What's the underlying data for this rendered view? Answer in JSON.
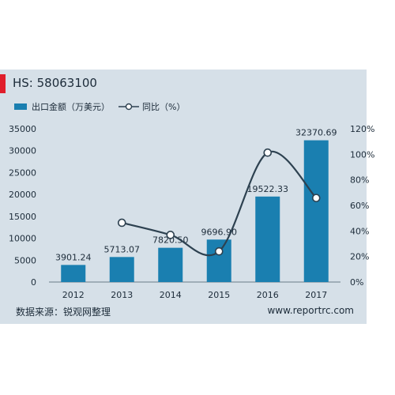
{
  "header": {
    "title": "HS: 58063100"
  },
  "footer": {
    "source": "数据来源：锐观网整理",
    "website": "www.reportrc.com"
  },
  "colors": {
    "bar": "#1a7fb0",
    "line": "#2d4150",
    "panel": "#d6e0e8",
    "accent": "#e01e2b"
  },
  "chart_data": {
    "type": "bar",
    "categories": [
      "2012",
      "2013",
      "2014",
      "2015",
      "2016",
      "2017"
    ],
    "series": [
      {
        "name": "出口金额（万美元）",
        "type": "bar",
        "axis": "left",
        "values": [
          3901.24,
          5713.07,
          7820.5,
          9696.9,
          19522.33,
          32370.69
        ],
        "labels": [
          "3901.24",
          "5713.07",
          "7820.50",
          "9696.90",
          "19522.33",
          "32370.69"
        ]
      },
      {
        "name": "同比（%）",
        "type": "line",
        "axis": "right",
        "values": [
          null,
          46.4,
          36.9,
          24.0,
          101.3,
          65.8
        ]
      }
    ],
    "y_left": {
      "min": 0,
      "max": 35000,
      "ticks": [
        "0",
        "5000",
        "10000",
        "15000",
        "20000",
        "25000",
        "30000",
        "35000"
      ]
    },
    "y_right": {
      "min": 0,
      "max": 120,
      "ticks": [
        "0%",
        "20%",
        "40%",
        "60%",
        "80%",
        "100%",
        "120%"
      ]
    },
    "grid": false,
    "legend": "top-left"
  }
}
